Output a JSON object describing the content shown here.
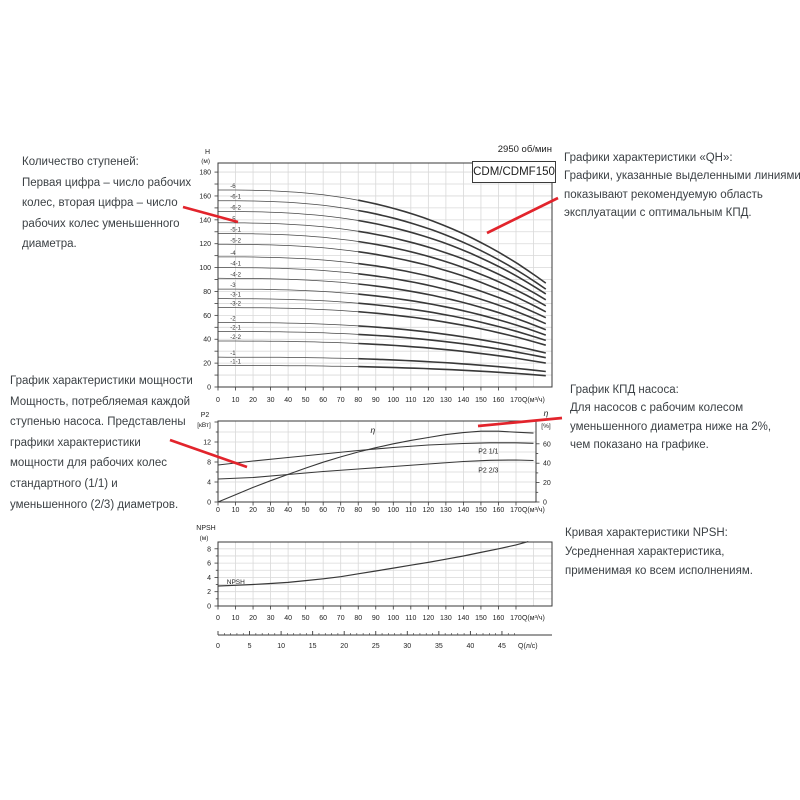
{
  "page": {
    "rpm_label": "2950 об/мин",
    "model_label": "CDM/CDMF150"
  },
  "annotations": {
    "stages": {
      "text": "Количество ступеней:\nПервая цифра – число рабочих\nколес, вторая цифра – число\nрабочих колес уменьшенного\nдиаметра."
    },
    "power": {
      "text": "График характеристики мощности\nМощность, потребляемая каждой\nступенью насоса. Представлены\nграфики характеристики\nмощности для рабочих колес\nстандартного (1/1) и\nуменьшенного (2/3) диаметров."
    },
    "qh": {
      "text": "Графики характеристики «QH»:\nГрафики, указанные выделенными линиями,\nпоказывают рекомендуемую область\nэксплуатации с оптимальным КПД."
    },
    "efficiency": {
      "text": "График КПД насоса:\nДля насосов с рабочим колесом\nуменьшенного диаметра ниже на 2%,\nчем показано на графике."
    },
    "npsh": {
      "text": "Кривая характеристики NPSH:\nУсредненная характеристика,\nприменимая ко всем исполнениям."
    }
  },
  "chart_data": [
    {
      "type": "line",
      "id": "qh",
      "title": "CDM/CDMF150",
      "subtitle": "2950 об/мин",
      "xlabel": "Q(м³/ч)",
      "ylabel": "H",
      "ylabel_unit": "(м)",
      "xlim": [
        0,
        190
      ],
      "ylim": [
        0,
        187
      ],
      "xticks": [
        0,
        10,
        20,
        30,
        40,
        50,
        60,
        70,
        80,
        90,
        100,
        110,
        120,
        130,
        140,
        150,
        160,
        170
      ],
      "yticks": [
        0,
        20,
        40,
        60,
        80,
        100,
        120,
        140,
        160,
        180
      ],
      "q_max": 187,
      "recommended_range_start_q": 80,
      "droop_exponent": 2.6,
      "series": [
        {
          "name": "-6",
          "shutoff_head": 165,
          "head_at_qmax": 87
        },
        {
          "name": "-6-1",
          "shutoff_head": 156,
          "head_at_qmax": 82
        },
        {
          "name": "-6-2",
          "shutoff_head": 147,
          "head_at_qmax": 78
        },
        {
          "name": "-5",
          "shutoff_head": 137.5,
          "head_at_qmax": 73
        },
        {
          "name": "-5-1",
          "shutoff_head": 128.5,
          "head_at_qmax": 68
        },
        {
          "name": "-5-2",
          "shutoff_head": 119.5,
          "head_at_qmax": 63
        },
        {
          "name": "-4",
          "shutoff_head": 109,
          "head_at_qmax": 58
        },
        {
          "name": "-4-1",
          "shutoff_head": 100,
          "head_at_qmax": 53
        },
        {
          "name": "-4-2",
          "shutoff_head": 91,
          "head_at_qmax": 48
        },
        {
          "name": "-3",
          "shutoff_head": 82,
          "head_at_qmax": 43.5
        },
        {
          "name": "-3-1",
          "shutoff_head": 74,
          "head_at_qmax": 39
        },
        {
          "name": "-3-2",
          "shutoff_head": 66.5,
          "head_at_qmax": 35
        },
        {
          "name": "-2",
          "shutoff_head": 54,
          "head_at_qmax": 28.5
        },
        {
          "name": "-2-1",
          "shutoff_head": 46.5,
          "head_at_qmax": 24.5
        },
        {
          "name": "-2-2",
          "shutoff_head": 38.5,
          "head_at_qmax": 20
        },
        {
          "name": "-1",
          "shutoff_head": 25,
          "head_at_qmax": 13
        },
        {
          "name": "-1-1",
          "shutoff_head": 18,
          "head_at_qmax": 9.5
        }
      ]
    },
    {
      "type": "line",
      "id": "power-efficiency",
      "xlabel": "Q(м³/ч)",
      "ylabel_left": "P2",
      "ylabel_left_unit": "[кВт]",
      "ylabel_right": "η",
      "ylabel_right_unit": "[%]",
      "xlim": [
        0,
        181
      ],
      "ylim_left": [
        0,
        16
      ],
      "ylim_right": [
        0,
        83
      ],
      "xticks": [
        0,
        10,
        20,
        30,
        40,
        50,
        60,
        70,
        80,
        90,
        100,
        110,
        120,
        130,
        140,
        150,
        160,
        170
      ],
      "yticks_left": [
        0,
        4,
        8,
        12
      ],
      "yticks_right": [
        0,
        20,
        40,
        60
      ],
      "series": [
        {
          "name": "P2 1/1",
          "axis": "left",
          "label_at": [
            153,
            10.1
          ],
          "points": [
            [
              0,
              7.4
            ],
            [
              20,
              8.2
            ],
            [
              40,
              8.9
            ],
            [
              60,
              9.6
            ],
            [
              80,
              10.3
            ],
            [
              100,
              10.9
            ],
            [
              120,
              11.4
            ],
            [
              140,
              11.7
            ],
            [
              155,
              11.85
            ],
            [
              170,
              11.85
            ],
            [
              180,
              11.75
            ]
          ]
        },
        {
          "name": "P2 2/3",
          "axis": "left",
          "label_at": [
            153,
            6.3
          ],
          "points": [
            [
              0,
              4.6
            ],
            [
              20,
              4.9
            ],
            [
              40,
              5.5
            ],
            [
              60,
              6.1
            ],
            [
              80,
              6.6
            ],
            [
              100,
              7.1
            ],
            [
              120,
              7.6
            ],
            [
              140,
              8.1
            ],
            [
              155,
              8.35
            ],
            [
              170,
              8.4
            ],
            [
              180,
              8.3
            ]
          ]
        },
        {
          "name": "η",
          "axis": "right",
          "label_at": [
            87,
            71
          ],
          "points": [
            [
              0,
              0
            ],
            [
              10,
              7.5
            ],
            [
              20,
              15
            ],
            [
              30,
              22
            ],
            [
              40,
              28.5
            ],
            [
              50,
              35
            ],
            [
              60,
              41
            ],
            [
              70,
              46.5
            ],
            [
              80,
              51.5
            ],
            [
              90,
              56
            ],
            [
              100,
              60
            ],
            [
              110,
              63.5
            ],
            [
              120,
              66.5
            ],
            [
              130,
              69.5
            ],
            [
              140,
              71.5
            ],
            [
              150,
              73
            ],
            [
              160,
              73
            ],
            [
              170,
              72
            ],
            [
              180,
              71
            ]
          ]
        }
      ]
    },
    {
      "type": "line",
      "id": "npsh",
      "xlabel": "Q(м³/ч)",
      "xlabel2": "Q(л/с)",
      "ylabel": "NPSH",
      "ylabel_unit": "(м)",
      "xlim": [
        0,
        190
      ],
      "xlim2": [
        0,
        47
      ],
      "ylim": [
        0,
        9
      ],
      "xticks": [
        0,
        10,
        20,
        30,
        40,
        50,
        60,
        70,
        80,
        90,
        100,
        110,
        120,
        130,
        140,
        150,
        160,
        170
      ],
      "x2ticks": [
        0,
        5,
        10,
        15,
        20,
        25,
        30,
        35,
        40,
        45
      ],
      "yticks": [
        0,
        2,
        4,
        6,
        8
      ],
      "series": [
        {
          "name": "NPSH",
          "label_at": [
            5,
            3.1
          ],
          "points": [
            [
              0,
              2.8
            ],
            [
              10,
              2.9
            ],
            [
              20,
              3.0
            ],
            [
              30,
              3.15
            ],
            [
              40,
              3.3
            ],
            [
              50,
              3.55
            ],
            [
              60,
              3.8
            ],
            [
              70,
              4.1
            ],
            [
              80,
              4.5
            ],
            [
              90,
              4.9
            ],
            [
              100,
              5.3
            ],
            [
              110,
              5.7
            ],
            [
              120,
              6.1
            ],
            [
              130,
              6.55
            ],
            [
              140,
              7.0
            ],
            [
              150,
              7.5
            ],
            [
              160,
              8.0
            ],
            [
              170,
              8.55
            ],
            [
              177,
              9.0
            ]
          ]
        }
      ]
    }
  ]
}
